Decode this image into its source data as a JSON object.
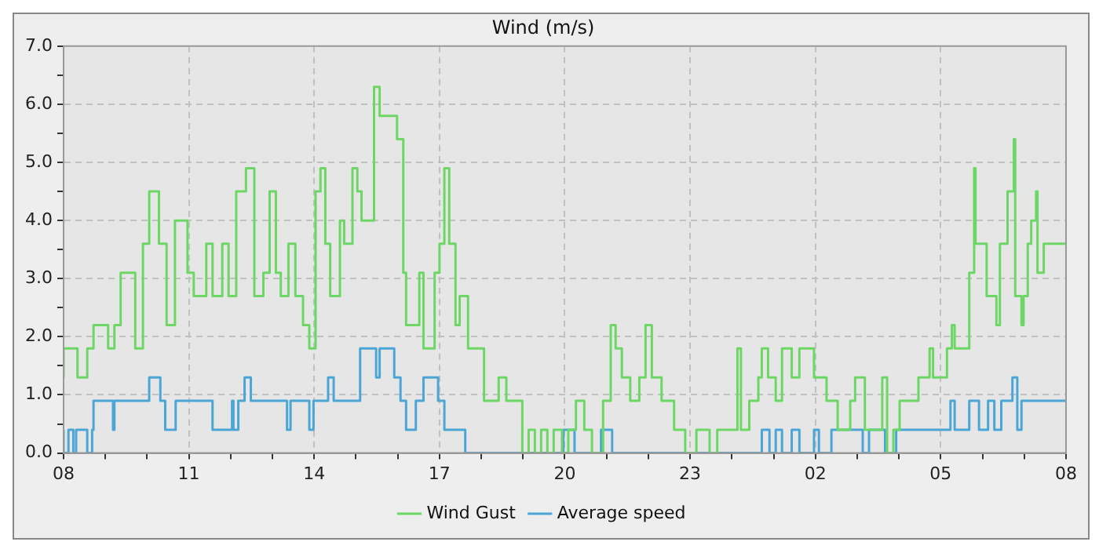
{
  "chart_data": {
    "type": "step",
    "title": "Wind (m/s)",
    "xlim": [
      "--01-01T08:00",
      "--01-02T08:00"
    ],
    "ylim": [
      0,
      7
    ],
    "xticks": [
      {
        "value": "--01-01T08:00",
        "label": "08"
      },
      {
        "value": "--01-01T09:00",
        "label": null
      },
      {
        "value": "--01-01T10:00",
        "label": null
      },
      {
        "value": "--01-01T11:00",
        "label": "11"
      },
      {
        "value": "--01-01T12:00",
        "label": null
      },
      {
        "value": "--01-01T13:00",
        "label": null
      },
      {
        "value": "--01-01T14:00",
        "label": "14"
      },
      {
        "value": "--01-01T15:00",
        "label": null
      },
      {
        "value": "--01-01T16:00",
        "label": null
      },
      {
        "value": "--01-01T17:00",
        "label": "17"
      },
      {
        "value": "--01-01T18:00",
        "label": null
      },
      {
        "value": "--01-01T19:00",
        "label": null
      },
      {
        "value": "--01-01T20:00",
        "label": "20"
      },
      {
        "value": "--01-01T21:00",
        "label": null
      },
      {
        "value": "--01-01T22:00",
        "label": null
      },
      {
        "value": "--01-01T23:00",
        "label": "23"
      },
      {
        "value": "--01-02T00:00",
        "label": null
      },
      {
        "value": "--01-02T01:00",
        "label": null
      },
      {
        "value": "--01-02T02:00",
        "label": "02"
      },
      {
        "value": "--01-02T03:00",
        "label": null
      },
      {
        "value": "--01-02T04:00",
        "label": null
      },
      {
        "value": "--01-02T05:00",
        "label": "05"
      },
      {
        "value": "--01-02T06:00",
        "label": null
      },
      {
        "value": "--01-02T07:00",
        "label": null
      },
      {
        "value": "--01-02T08:00",
        "label": "08"
      }
    ],
    "yticks": [
      {
        "value": 0,
        "label": "0.0"
      },
      {
        "value": 0.5,
        "label": null
      },
      {
        "value": 1,
        "label": "1.0"
      },
      {
        "value": 1.5,
        "label": null
      },
      {
        "value": 2,
        "label": "2.0"
      },
      {
        "value": 2.5,
        "label": null
      },
      {
        "value": 3,
        "label": "3.0"
      },
      {
        "value": 3.5,
        "label": null
      },
      {
        "value": 4,
        "label": "4.0"
      },
      {
        "value": 4.5,
        "label": null
      },
      {
        "value": 5,
        "label": "5.0"
      },
      {
        "value": 5.5,
        "label": null
      },
      {
        "value": 6,
        "label": "6.0"
      },
      {
        "value": 6.5,
        "label": null
      },
      {
        "value": 7,
        "label": "7.0"
      }
    ],
    "grid": true,
    "legend": "bottom",
    "line_style": "solid",
    "marker": "none",
    "series": [
      {
        "name": "Wind Gust",
        "color": "#6dd765",
        "x": [
          "--01-01T08:00",
          "--01-01T08:20",
          "--01-01T08:34",
          "--01-01T08:43",
          "--01-01T09:04",
          "--01-01T09:13",
          "--01-01T09:22",
          "--01-01T09:43",
          "--01-01T09:54",
          "--01-01T10:03",
          "--01-01T10:17",
          "--01-01T10:28",
          "--01-01T10:40",
          "--01-01T10:58",
          "--01-01T11:07",
          "--01-01T11:25",
          "--01-01T11:34",
          "--01-01T11:48",
          "--01-01T11:57",
          "--01-01T12:08",
          "--01-01T12:22",
          "--01-01T12:34",
          "--01-01T12:47",
          "--01-01T12:56",
          "--01-01T13:05",
          "--01-01T13:12",
          "--01-01T13:23",
          "--01-01T13:33",
          "--01-01T13:44",
          "--01-01T13:53",
          "--01-01T14:02",
          "--01-01T14:09",
          "--01-01T14:16",
          "--01-01T14:23",
          "--01-01T14:37",
          "--01-01T14:43",
          "--01-01T14:55",
          "--01-01T15:02",
          "--01-01T15:08",
          "--01-01T15:26",
          "--01-01T15:34",
          "--01-01T15:59",
          "--01-01T16:08",
          "--01-01T16:12",
          "--01-01T16:31",
          "--01-01T16:37",
          "--01-01T16:53",
          "--01-01T17:00",
          "--01-01T17:07",
          "--01-01T17:14",
          "--01-01T17:23",
          "--01-01T17:29",
          "--01-01T17:41",
          "--01-01T17:46",
          "--01-01T18:04",
          "--01-01T18:25",
          "--01-01T18:36",
          "--01-01T18:59",
          "--01-01T19:08",
          "--01-01T19:17",
          "--01-01T19:26",
          "--01-01T19:35",
          "--01-01T19:44",
          "--01-01T19:56",
          "--01-01T20:05",
          "--01-01T20:16",
          "--01-01T20:28",
          "--01-01T20:39",
          "--01-01T20:55",
          "--01-01T21:06",
          "--01-01T21:13",
          "--01-01T21:22",
          "--01-01T21:34",
          "--01-01T21:47",
          "--01-01T21:56",
          "--01-01T22:05",
          "--01-01T22:19",
          "--01-01T22:37",
          "--01-01T22:53",
          "--01-01T23:09",
          "--01-01T23:28",
          "--01-01T23:39",
          "--01-01T23:50",
          "--01-02T00:08",
          "--01-02T00:13",
          "--01-02T00:25",
          "--01-02T00:38",
          "--01-02T00:43",
          "--01-02T00:52",
          "--01-02T01:03",
          "--01-02T01:12",
          "--01-02T01:26",
          "--01-02T01:37",
          "--01-02T01:58",
          "--01-02T02:16",
          "--01-02T02:32",
          "--01-02T02:50",
          "--01-02T02:57",
          "--01-02T03:11",
          "--01-02T03:36",
          "--01-02T03:43",
          "--01-02T03:52",
          "--01-02T04:01",
          "--01-02T04:28",
          "--01-02T04:44",
          "--01-02T04:49",
          "--01-02T05:02",
          "--01-02T05:09",
          "--01-02T05:16",
          "--01-02T05:20",
          "--01-02T05:41",
          "--01-02T05:48",
          "--01-02T05:50",
          "--01-02T05:59",
          "--01-02T06:06",
          "--01-02T06:20",
          "--01-02T06:25",
          "--01-02T06:36",
          "--01-02T06:45",
          "--01-02T06:47",
          "--01-02T06:56",
          "--01-02T06:59",
          "--01-02T07:05",
          "--01-02T07:10",
          "--01-02T07:17",
          "--01-02T07:19",
          "--01-02T07:28",
          "--01-02T07:37",
          "--01-02T08:00"
        ],
        "values": [
          1.3,
          1.8,
          1.3,
          1.8,
          2.2,
          1.8,
          2.2,
          3.1,
          1.8,
          3.6,
          4.5,
          3.6,
          2.2,
          4.0,
          3.1,
          2.7,
          3.6,
          2.7,
          3.6,
          2.7,
          4.5,
          4.9,
          2.7,
          3.1,
          4.5,
          3.1,
          2.7,
          3.6,
          2.7,
          2.2,
          1.8,
          4.5,
          4.9,
          3.6,
          2.7,
          4.0,
          3.6,
          4.9,
          4.5,
          4.0,
          6.3,
          5.8,
          5.4,
          3.1,
          2.2,
          3.1,
          1.8,
          3.1,
          3.6,
          4.9,
          3.6,
          2.2,
          2.7,
          1.8,
          1.8,
          0.9,
          1.3,
          0.9,
          0.0,
          0.4,
          0.0,
          0.4,
          0.0,
          0.4,
          0.0,
          0.4,
          0.9,
          0.4,
          0.0,
          0.9,
          2.2,
          1.8,
          1.3,
          0.9,
          1.3,
          2.2,
          1.3,
          0.9,
          0.4,
          0.0,
          0.4,
          0.0,
          0.4,
          0.4,
          1.8,
          0.4,
          0.9,
          1.3,
          1.8,
          1.3,
          0.9,
          1.8,
          1.3,
          1.8,
          1.3,
          0.9,
          0.4,
          0.9,
          1.3,
          0.4,
          1.3,
          0.0,
          0.4,
          0.9,
          1.3,
          1.8,
          1.3,
          1.3,
          1.8,
          2.2,
          1.8,
          3.1,
          4.9,
          3.6,
          3.6,
          2.7,
          2.2,
          3.6,
          4.5,
          5.4,
          2.7,
          2.2,
          2.7,
          3.6,
          4.0,
          4.5,
          3.1,
          3.6,
          3.6
        ]
      },
      {
        "name": "Average speed",
        "color": "#4ba6d6",
        "x": [
          "--01-01T08:00",
          "--01-01T08:07",
          "--01-01T08:14",
          "--01-01T08:18",
          "--01-01T08:34",
          "--01-01T08:41",
          "--01-01T08:43",
          "--01-01T09:11",
          "--01-01T09:13",
          "--01-01T09:45",
          "--01-01T10:03",
          "--01-01T10:19",
          "--01-01T10:26",
          "--01-01T10:41",
          "--01-01T10:59",
          "--01-01T11:34",
          "--01-01T12:02",
          "--01-01T12:04",
          "--01-01T12:11",
          "--01-01T12:20",
          "--01-01T12:29",
          "--01-01T13:21",
          "--01-01T13:26",
          "--01-01T13:53",
          "--01-01T13:59",
          "--01-01T14:20",
          "--01-01T14:28",
          "--01-01T14:50",
          "--01-01T15:06",
          "--01-01T15:29",
          "--01-01T15:34",
          "--01-01T15:55",
          "--01-01T16:04",
          "--01-01T16:12",
          "--01-01T16:26",
          "--01-01T16:37",
          "--01-01T16:58",
          "--01-01T17:07",
          "--01-01T17:37",
          "--01-01T17:59",
          "--01-01T18:20",
          "--01-01T19:15",
          "--01-01T19:29",
          "--01-01T19:58",
          "--01-01T20:14",
          "--01-01T20:52",
          "--01-01T21:08",
          "--01-01T21:20",
          "--01-01T22:07",
          "--01-01T22:26",
          "--01-01T22:53",
          "--01-01T23:03",
          "--01-01T23:21",
          "--01-01T23:28",
          "--01-01T23:41",
          "--01-02T00:08",
          "--01-02T00:17",
          "--01-02T00:43",
          "--01-02T00:54",
          "--01-02T01:03",
          "--01-02T01:12",
          "--01-02T01:26",
          "--01-02T01:37",
          "--01-02T01:58",
          "--01-02T02:05",
          "--01-02T02:16",
          "--01-02T02:23",
          "--01-02T03:08",
          "--01-02T03:17",
          "--01-02T03:40",
          "--01-02T03:56",
          "--01-02T04:40",
          "--01-02T05:14",
          "--01-02T05:20",
          "--01-02T05:41",
          "--01-02T05:55",
          "--01-02T06:08",
          "--01-02T06:17",
          "--01-02T06:27",
          "--01-02T06:43",
          "--01-02T06:50",
          "--01-02T06:56",
          "--01-02T07:12",
          "--01-02T08:00"
        ],
        "values": [
          0.4,
          0.0,
          0.4,
          0.0,
          0.4,
          0.0,
          0.4,
          0.9,
          0.4,
          0.9,
          0.9,
          1.3,
          0.9,
          0.4,
          0.9,
          0.9,
          0.4,
          0.9,
          0.4,
          0.9,
          1.3,
          0.9,
          0.4,
          0.9,
          0.4,
          0.9,
          1.3,
          0.9,
          0.9,
          1.8,
          1.3,
          1.8,
          1.3,
          0.9,
          0.4,
          0.9,
          1.3,
          0.9,
          0.4,
          0.0,
          0.0,
          0.0,
          0.0,
          0.0,
          0.4,
          0.0,
          0.4,
          0.0,
          0.0,
          0.0,
          0.0,
          0.0,
          0.0,
          0.0,
          0.0,
          0.0,
          0.0,
          0.0,
          0.4,
          0.0,
          0.4,
          0.0,
          0.4,
          0.0,
          0.4,
          0.0,
          0.0,
          0.4,
          0.0,
          0.4,
          0.0,
          0.4,
          0.4,
          0.9,
          0.4,
          0.9,
          0.4,
          0.9,
          0.4,
          0.9,
          1.3,
          0.4,
          0.9,
          0.9
        ]
      }
    ]
  }
}
